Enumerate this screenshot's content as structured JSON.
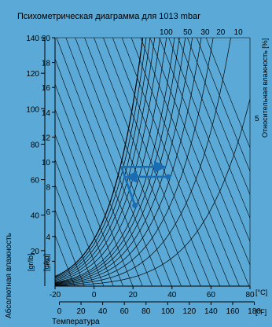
{
  "chart_data": {
    "type": "psychrometric",
    "title": "Психометрическая диаграмма для  1013 mbar",
    "xlabel": "Температура",
    "ylabel_outer": "Абсолютная влажность",
    "ylabel_outer_unit": "[gr/lb]",
    "ylabel_inner_unit": "[g/kg]",
    "right_label": "Относительная влажность [%]",
    "unit_c": "[°C]",
    "unit_f": "[°F]",
    "x_celsius_ticks": [
      "-20",
      "0",
      "20",
      "40",
      "60",
      "80"
    ],
    "x_fahrenheit_ticks": [
      "0",
      "20",
      "40",
      "60",
      "80",
      "100",
      "120",
      "140",
      "160",
      "180"
    ],
    "y_gkg_ticks": [
      "2",
      "4",
      "6",
      "8",
      "10",
      "12",
      "14",
      "16",
      "18",
      "20"
    ],
    "y_grlb_ticks": [
      "20",
      "40",
      "60",
      "80",
      "100",
      "120",
      "140"
    ],
    "rh_top_labels": [
      "100",
      "50",
      "30",
      "20",
      "10"
    ],
    "rh_side_labels": [
      "5"
    ],
    "xlim_c": [
      -20,
      80
    ],
    "ylim_gkg": [
      0,
      20
    ],
    "rh_curves_percent": [
      100,
      90,
      80,
      70,
      60,
      50,
      40,
      35,
      30,
      25,
      20,
      15,
      10,
      5
    ],
    "process_points": [
      {
        "t": 14,
        "x": 9.6
      },
      {
        "t": 21,
        "x": 6.5
      },
      {
        "t": 38,
        "x": 8.8
      },
      {
        "t": 18,
        "x": 8.8
      },
      {
        "t": 14,
        "x": 9.6
      },
      {
        "t": 35,
        "x": 9.6
      }
    ],
    "line_color": "#000000",
    "accent": "#1a6db3",
    "background": "#5aa9d6"
  }
}
